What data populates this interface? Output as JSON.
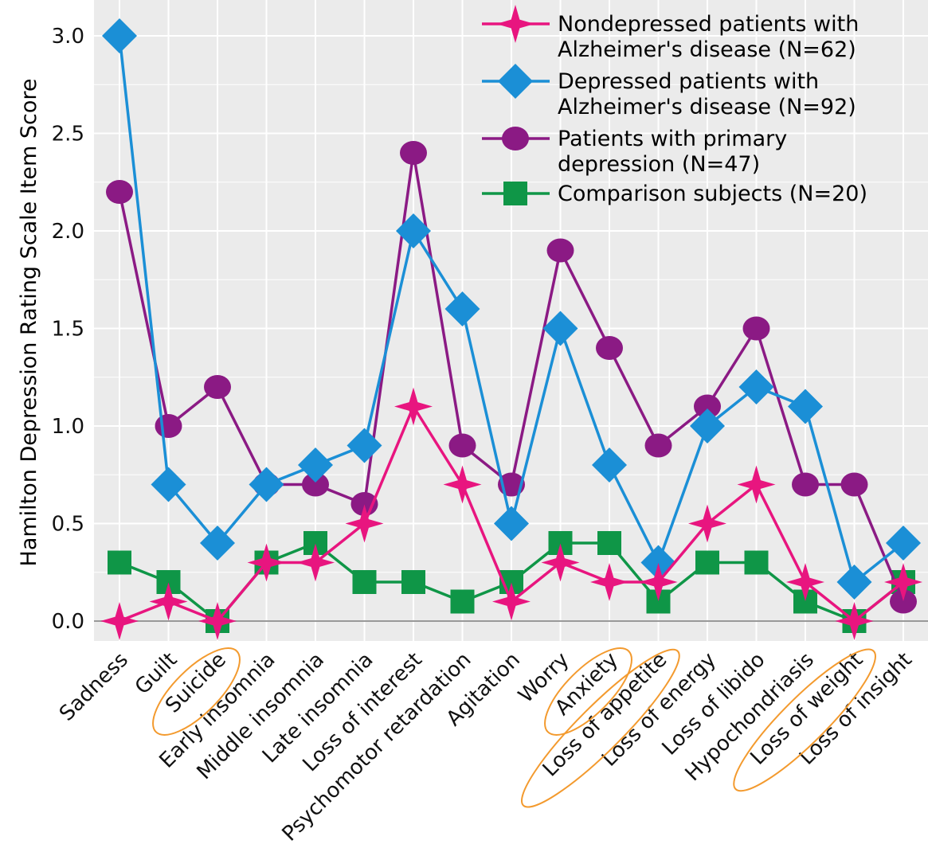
{
  "chart_data": {
    "type": "line",
    "title": "",
    "xlabel": "",
    "ylabel": "Hamilton Depression Rating Scale Item Score",
    "ylim": [
      -0.1,
      3.15
    ],
    "yticks": [
      "0.0",
      "0.5",
      "1.0",
      "1.5",
      "2.0",
      "2.5",
      "3.0"
    ],
    "grid": true,
    "legend_position": "top-right",
    "categories": [
      "Sadness",
      "Guilt",
      "Suicide",
      "Early insomnia",
      "Middle insomnia",
      "Late insomnia",
      "Loss of interest",
      "Psychomotor retardation",
      "Agitation",
      "Worry",
      "Anxiety",
      "Loss of appetite",
      "Loss of energy",
      "Loss of libido",
      "Hypochondriasis",
      "Loss of weight",
      "Loss of insight"
    ],
    "highlighted_categories": [
      "Suicide",
      "Anxiety",
      "Loss of appetite",
      "Loss of weight"
    ],
    "series": [
      {
        "name_lines": [
          "Nondepressed patients with",
          "Alzheimer's disease (N=62)"
        ],
        "marker": "star",
        "color": "#e8157f",
        "values": [
          0.0,
          0.1,
          0.0,
          0.3,
          0.3,
          0.5,
          1.1,
          0.7,
          0.1,
          0.3,
          0.2,
          0.2,
          0.5,
          0.7,
          0.2,
          0.0,
          0.2
        ]
      },
      {
        "name_lines": [
          "Depressed patients with",
          "Alzheimer's disease (N=92)"
        ],
        "marker": "diamond",
        "color": "#1b8fd6",
        "values": [
          3.0,
          0.7,
          0.4,
          0.7,
          0.8,
          0.9,
          2.0,
          1.6,
          0.5,
          1.5,
          0.8,
          0.3,
          1.0,
          1.2,
          1.1,
          0.2,
          0.4
        ]
      },
      {
        "name_lines": [
          "Patients with primary",
          "depression (N=47)"
        ],
        "marker": "circle",
        "color": "#8b1a84",
        "values": [
          2.2,
          1.0,
          1.2,
          0.7,
          0.7,
          0.6,
          2.4,
          0.9,
          0.7,
          1.9,
          1.4,
          0.9,
          1.1,
          1.5,
          0.7,
          0.7,
          0.1
        ]
      },
      {
        "name_lines": [
          "Comparison subjects (N=20)"
        ],
        "marker": "square",
        "color": "#0f9647",
        "values": [
          0.3,
          0.2,
          0.0,
          0.3,
          0.4,
          0.2,
          0.2,
          0.1,
          0.2,
          0.4,
          0.4,
          0.1,
          0.3,
          0.3,
          0.1,
          0.0,
          0.2
        ]
      }
    ],
    "colors": {
      "panel_background": "#ebebeb",
      "grid": "#ffffff",
      "baseline": "#999999",
      "highlight_ellipse": "#f39a2e"
    }
  }
}
